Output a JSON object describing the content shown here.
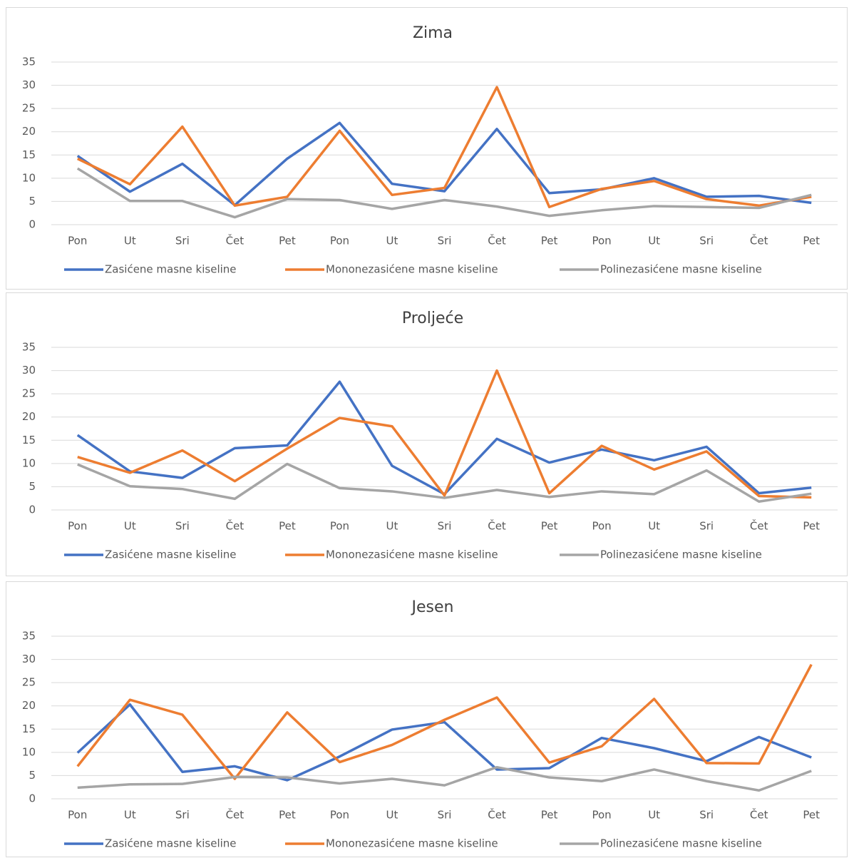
{
  "chart_data": [
    {
      "type": "line",
      "title": "Zima",
      "categories": [
        "Pon",
        "Ut",
        "Sri",
        "Čet",
        "Pet",
        "Pon",
        "Ut",
        "Sri",
        "Čet",
        "Pet",
        "Pon",
        "Ut",
        "Sri",
        "Čet",
        "Pet"
      ],
      "series": [
        {
          "name": "Zasićene masne kiseline",
          "color": "#4472c4",
          "values": [
            14.8,
            7.1,
            13.1,
            4.2,
            14.2,
            21.9,
            8.8,
            7.2,
            20.6,
            6.8,
            7.6,
            10,
            6,
            6.2,
            4.7
          ]
        },
        {
          "name": "Mononezasićene masne kiseline",
          "color": "#ed7d31",
          "values": [
            14.2,
            8.7,
            21.1,
            4.1,
            6,
            20.2,
            6.4,
            7.9,
            29.6,
            3.8,
            7.7,
            9.4,
            5.5,
            4.1,
            6
          ]
        },
        {
          "name": "Polinezasićene masne kiseline",
          "color": "#a5a5a5",
          "values": [
            12.1,
            5.1,
            5.1,
            1.6,
            5.5,
            5.3,
            3.4,
            5.3,
            3.9,
            1.9,
            3.1,
            4,
            3.8,
            3.6,
            6.4
          ]
        }
      ],
      "ylim": [
        0,
        35
      ],
      "yticks": [
        0,
        5,
        10,
        15,
        20,
        25,
        30,
        35
      ],
      "grid": true,
      "legend": "bottom"
    },
    {
      "type": "line",
      "title": "Proljeće",
      "categories": [
        "Pon",
        "Ut",
        "Sri",
        "Čet",
        "Pet",
        "Pon",
        "Ut",
        "Sri",
        "Čet",
        "Pet",
        "Pon",
        "Ut",
        "Sri",
        "Čet",
        "Pet"
      ],
      "series": [
        {
          "name": "Zasićene masne kiseline",
          "color": "#4472c4",
          "values": [
            16.1,
            8.3,
            6.9,
            13.3,
            13.9,
            27.6,
            9.5,
            3.4,
            15.3,
            10.2,
            13,
            10.7,
            13.6,
            3.6,
            4.8
          ]
        },
        {
          "name": "Mononezasićene masne kiseline",
          "color": "#ed7d31",
          "values": [
            11.4,
            8,
            12.8,
            6.2,
            13.2,
            19.8,
            18,
            3.1,
            30,
            3.6,
            13.8,
            8.7,
            12.6,
            3,
            2.7
          ]
        },
        {
          "name": "Polinezasićene masne kiseline",
          "color": "#a5a5a5",
          "values": [
            9.8,
            5.1,
            4.5,
            2.4,
            9.9,
            4.7,
            4,
            2.6,
            4.3,
            2.8,
            4,
            3.4,
            8.5,
            1.8,
            3.5
          ]
        }
      ],
      "ylim": [
        0,
        35
      ],
      "yticks": [
        0,
        5,
        10,
        15,
        20,
        25,
        30,
        35
      ],
      "grid": true,
      "legend": "bottom"
    },
    {
      "type": "line",
      "title": "Jesen",
      "categories": [
        "Pon",
        "Ut",
        "Sri",
        "Čet",
        "Pet",
        "Pon",
        "Ut",
        "Sri",
        "Čet",
        "Pet",
        "Pon",
        "Ut",
        "Sri",
        "Čet",
        "Pet"
      ],
      "series": [
        {
          "name": "Zasićene masne kiseline",
          "color": "#4472c4",
          "values": [
            9.9,
            20.3,
            5.8,
            7,
            4,
            9.1,
            14.9,
            16.5,
            6.3,
            6.6,
            13.1,
            10.9,
            8.1,
            13.3,
            8.9
          ]
        },
        {
          "name": "Mononezasićene masne kiseline",
          "color": "#ed7d31",
          "values": [
            7,
            21.3,
            18.1,
            4.3,
            18.6,
            7.9,
            11.6,
            17,
            21.8,
            7.8,
            11.3,
            21.5,
            7.7,
            7.6,
            28.9
          ]
        },
        {
          "name": "Polinezasićene masne kiseline",
          "color": "#a5a5a5",
          "values": [
            2.4,
            3.1,
            3.2,
            4.7,
            4.6,
            3.3,
            4.3,
            2.9,
            6.8,
            4.6,
            3.8,
            6.3,
            3.8,
            1.8,
            6
          ]
        }
      ],
      "ylim": [
        0,
        35
      ],
      "yticks": [
        0,
        5,
        10,
        15,
        20,
        25,
        30,
        35
      ],
      "grid": true,
      "legend": "bottom"
    }
  ]
}
